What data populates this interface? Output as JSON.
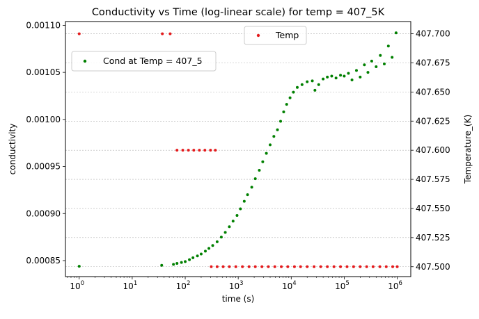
{
  "chart_data": {
    "type": "scatter",
    "title": "Conductivity vs Time (log-linear scale) for temp = 407_5K",
    "xlabel": "time (s)",
    "ylabel": "conductivity",
    "y2label": "Temperature_(K)",
    "xscale": "log",
    "xlim": [
      0.55,
      1800000
    ],
    "ylim": [
      0.000833,
      0.001104
    ],
    "y2lim": [
      407.4915,
      407.7105
    ],
    "x_ticks": [
      {
        "value": 1,
        "base": "10",
        "exp": "0"
      },
      {
        "value": 10,
        "base": "10",
        "exp": "1"
      },
      {
        "value": 100,
        "base": "10",
        "exp": "2"
      },
      {
        "value": 1000,
        "base": "10",
        "exp": "3"
      },
      {
        "value": 10000,
        "base": "10",
        "exp": "4"
      },
      {
        "value": 100000,
        "base": "10",
        "exp": "5"
      },
      {
        "value": 1000000,
        "base": "10",
        "exp": "6"
      }
    ],
    "y_ticks": [
      {
        "value": 0.00085,
        "label": "0.00085"
      },
      {
        "value": 0.0009,
        "label": "0.00090"
      },
      {
        "value": 0.00095,
        "label": "0.00095"
      },
      {
        "value": 0.001,
        "label": "0.00100"
      },
      {
        "value": 0.00105,
        "label": "0.00105"
      },
      {
        "value": 0.0011,
        "label": "0.00110"
      }
    ],
    "y2_ticks": [
      {
        "value": 407.5,
        "label": "407.500"
      },
      {
        "value": 407.525,
        "label": "407.525"
      },
      {
        "value": 407.55,
        "label": "407.550"
      },
      {
        "value": 407.575,
        "label": "407.575"
      },
      {
        "value": 407.6,
        "label": "407.600"
      },
      {
        "value": 407.625,
        "label": "407.625"
      },
      {
        "value": 407.65,
        "label": "407.650"
      },
      {
        "value": 407.675,
        "label": "407.675"
      },
      {
        "value": 407.7,
        "label": "407.700"
      }
    ],
    "grid": "horizontal dashed (right axis ticks)",
    "series": [
      {
        "name": "Cond at Temp = 407_5",
        "axis": "left",
        "color": "#008000",
        "legend_position": "upper-left",
        "points": [
          [
            1,
            0.000844
          ],
          [
            36,
            0.000845
          ],
          [
            60,
            0.000846
          ],
          [
            70,
            0.000847
          ],
          [
            85,
            0.000848
          ],
          [
            100,
            0.000849
          ],
          [
            120,
            0.000851
          ],
          [
            140,
            0.000853
          ],
          [
            170,
            0.000855
          ],
          [
            200,
            0.000857
          ],
          [
            240,
            0.00086
          ],
          [
            280,
            0.000863
          ],
          [
            330,
            0.000866
          ],
          [
            400,
            0.00087
          ],
          [
            480,
            0.000875
          ],
          [
            570,
            0.00088
          ],
          [
            680,
            0.000886
          ],
          [
            800,
            0.000892
          ],
          [
            950,
            0.000898
          ],
          [
            1100,
            0.000905
          ],
          [
            1300,
            0.000913
          ],
          [
            1500,
            0.00092
          ],
          [
            1800,
            0.000928
          ],
          [
            2100,
            0.000937
          ],
          [
            2500,
            0.000946
          ],
          [
            2900,
            0.000955
          ],
          [
            3400,
            0.000964
          ],
          [
            4000,
            0.000973
          ],
          [
            4700,
            0.000982
          ],
          [
            5500,
            0.000989
          ],
          [
            6300,
            0.000998
          ],
          [
            7200,
            0.001008
          ],
          [
            8200,
            0.001016
          ],
          [
            9500,
            0.001023
          ],
          [
            11000,
            0.001029
          ],
          [
            13000,
            0.001034
          ],
          [
            16000,
            0.001037
          ],
          [
            20000,
            0.00104
          ],
          [
            25000,
            0.001041
          ],
          [
            28000,
            0.001031
          ],
          [
            33000,
            0.001037
          ],
          [
            40000,
            0.001043
          ],
          [
            48000,
            0.001045
          ],
          [
            58000,
            0.001046
          ],
          [
            70000,
            0.001044
          ],
          [
            85000,
            0.001047
          ],
          [
            100000,
            0.001046
          ],
          [
            120000,
            0.001049
          ],
          [
            140000,
            0.001042
          ],
          [
            170000,
            0.001052
          ],
          [
            200000,
            0.001045
          ],
          [
            240000,
            0.001058
          ],
          [
            280000,
            0.00105
          ],
          [
            330000,
            0.001062
          ],
          [
            400000,
            0.001056
          ],
          [
            480000,
            0.001068
          ],
          [
            570000,
            0.001059
          ],
          [
            680000,
            0.001078
          ],
          [
            800000,
            0.001066
          ],
          [
            950000,
            0.001092
          ]
        ]
      },
      {
        "name": "Temp",
        "axis": "right",
        "color": "#e41a1c",
        "legend_position": "upper-center",
        "points": [
          [
            1,
            407.7
          ],
          [
            37,
            407.7
          ],
          [
            52,
            407.7
          ],
          [
            70,
            407.6
          ],
          [
            90,
            407.6
          ],
          [
            115,
            407.6
          ],
          [
            145,
            407.6
          ],
          [
            185,
            407.6
          ],
          [
            235,
            407.6
          ],
          [
            300,
            407.6
          ],
          [
            370,
            407.6
          ],
          [
            310,
            407.5
          ],
          [
            400,
            407.5
          ],
          [
            520,
            407.5
          ],
          [
            680,
            407.5
          ],
          [
            900,
            407.5
          ],
          [
            1200,
            407.5
          ],
          [
            1600,
            407.5
          ],
          [
            2100,
            407.5
          ],
          [
            2800,
            407.5
          ],
          [
            3700,
            407.5
          ],
          [
            4900,
            407.5
          ],
          [
            6500,
            407.5
          ],
          [
            8600,
            407.5
          ],
          [
            11500,
            407.5
          ],
          [
            15000,
            407.5
          ],
          [
            20000,
            407.5
          ],
          [
            27000,
            407.5
          ],
          [
            36000,
            407.5
          ],
          [
            48000,
            407.5
          ],
          [
            64000,
            407.5
          ],
          [
            85000,
            407.5
          ],
          [
            113000,
            407.5
          ],
          [
            150000,
            407.5
          ],
          [
            200000,
            407.5
          ],
          [
            265000,
            407.5
          ],
          [
            350000,
            407.5
          ],
          [
            470000,
            407.5
          ],
          [
            620000,
            407.5
          ],
          [
            820000,
            407.5
          ],
          [
            1000000,
            407.5
          ]
        ]
      }
    ]
  }
}
